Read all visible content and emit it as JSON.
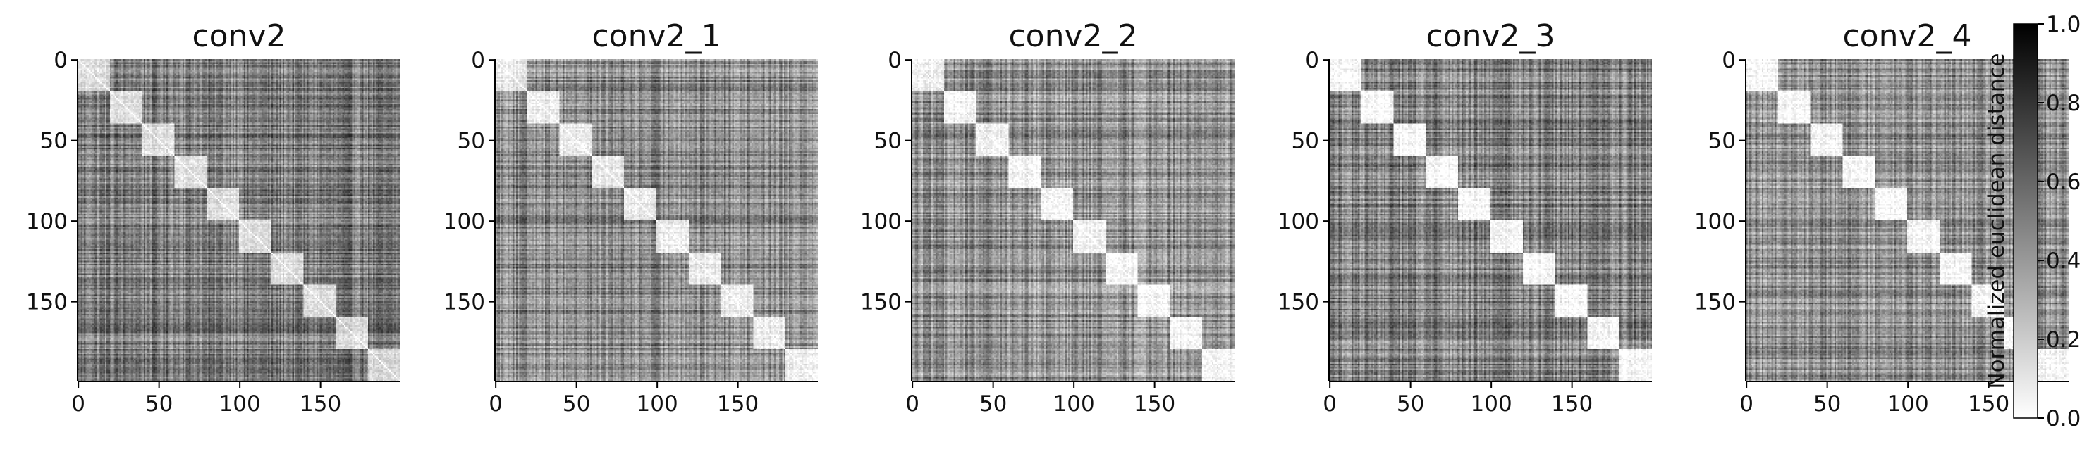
{
  "chart_data": {
    "type": "heatmap",
    "colormap": "gray_r",
    "panels": [
      {
        "title": "conv2",
        "size": 200,
        "xticks": [
          0,
          50,
          100,
          150
        ],
        "yticks": [
          0,
          50,
          100,
          150
        ],
        "blocks": [
          [
            0,
            20
          ],
          [
            20,
            40
          ],
          [
            40,
            60
          ],
          [
            60,
            80
          ],
          [
            80,
            100
          ],
          [
            100,
            120
          ],
          [
            120,
            140
          ],
          [
            140,
            160
          ],
          [
            160,
            180
          ],
          [
            180,
            200
          ]
        ],
        "structure": 0.25,
        "mean_distance": 0.5
      },
      {
        "title": "conv2_1",
        "size": 200,
        "xticks": [
          0,
          50,
          100,
          150
        ],
        "yticks": [
          0,
          50,
          100,
          150
        ],
        "blocks": [
          [
            0,
            20
          ],
          [
            20,
            40
          ],
          [
            40,
            60
          ],
          [
            60,
            80
          ],
          [
            80,
            100
          ],
          [
            100,
            120
          ],
          [
            120,
            140
          ],
          [
            140,
            160
          ],
          [
            160,
            180
          ],
          [
            180,
            200
          ]
        ],
        "structure": 0.45,
        "mean_distance": 0.45
      },
      {
        "title": "conv2_2",
        "size": 200,
        "xticks": [
          0,
          50,
          100,
          150
        ],
        "yticks": [
          0,
          50,
          100,
          150
        ],
        "blocks": [
          [
            0,
            20
          ],
          [
            20,
            40
          ],
          [
            40,
            60
          ],
          [
            60,
            80
          ],
          [
            80,
            100
          ],
          [
            100,
            120
          ],
          [
            120,
            140
          ],
          [
            140,
            160
          ],
          [
            160,
            180
          ],
          [
            180,
            200
          ]
        ],
        "structure": 0.7,
        "mean_distance": 0.4
      },
      {
        "title": "conv2_3",
        "size": 200,
        "xticks": [
          0,
          50,
          100,
          150
        ],
        "yticks": [
          0,
          50,
          100,
          150
        ],
        "blocks": [
          [
            0,
            20
          ],
          [
            20,
            40
          ],
          [
            40,
            60
          ],
          [
            60,
            80
          ],
          [
            80,
            100
          ],
          [
            100,
            120
          ],
          [
            120,
            140
          ],
          [
            140,
            160
          ],
          [
            160,
            180
          ],
          [
            180,
            200
          ]
        ],
        "structure": 0.85,
        "mean_distance": 0.45
      },
      {
        "title": "conv2_4",
        "size": 200,
        "xticks": [
          0,
          50,
          100,
          150
        ],
        "yticks": [
          0,
          50,
          100,
          150
        ],
        "blocks": [
          [
            0,
            20
          ],
          [
            20,
            40
          ],
          [
            40,
            60
          ],
          [
            60,
            80
          ],
          [
            80,
            100
          ],
          [
            100,
            120
          ],
          [
            120,
            140
          ],
          [
            140,
            160
          ],
          [
            160,
            180
          ],
          [
            180,
            200
          ]
        ],
        "structure": 0.8,
        "mean_distance": 0.4
      }
    ],
    "colorbar": {
      "label": "Normalized euclidean distance",
      "range": [
        0.0,
        1.0
      ],
      "ticks": [
        0.0,
        0.2,
        0.4,
        0.6,
        0.8,
        1.0
      ]
    }
  }
}
